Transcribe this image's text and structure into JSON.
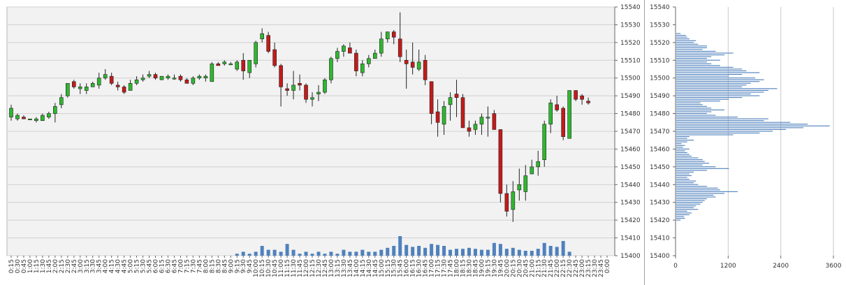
{
  "chart_data": [
    {
      "type": "candlestick",
      "ylim": [
        15400,
        15540
      ],
      "y_ticks": [
        15400,
        15410,
        15420,
        15430,
        15440,
        15450,
        15460,
        15470,
        15480,
        15490,
        15500,
        15510,
        15520,
        15530,
        15540
      ],
      "x_ticks": [
        "0:15",
        "0:30",
        "0:45",
        "1:00",
        "1:15",
        "1:30",
        "1:45",
        "2:00",
        "2:15",
        "2:30",
        "2:45",
        "3:00",
        "3:15",
        "3:30",
        "3:45",
        "4:00",
        "4:15",
        "4:30",
        "4:45",
        "5:00",
        "5:15",
        "5:30",
        "5:45",
        "6:00",
        "6:15",
        "6:30",
        "6:45",
        "7:00",
        "7:15",
        "7:30",
        "7:45",
        "8:00",
        "8:15",
        "8:30",
        "8:45",
        "9:00",
        "9:15",
        "9:30",
        "9:45",
        "10:00",
        "10:15",
        "10:30",
        "10:45",
        "11:00",
        "11:15",
        "11:30",
        "11:45",
        "12:00",
        "12:15",
        "12:30",
        "12:45",
        "13:00",
        "13:15",
        "13:30",
        "13:45",
        "14:00",
        "14:15",
        "14:30",
        "14:45",
        "15:00",
        "15:15",
        "15:30",
        "15:45",
        "16:00",
        "16:15",
        "16:30",
        "16:45",
        "17:00",
        "17:15",
        "17:30",
        "17:45",
        "18:00",
        "18:15",
        "18:30",
        "18:45",
        "19:00",
        "19:15",
        "19:30",
        "19:45",
        "20:00",
        "20:15",
        "20:30",
        "20:45",
        "21:00",
        "21:15",
        "21:30",
        "21:45",
        "22:00",
        "22:15",
        "22:30",
        "22:45",
        "23:00",
        "23:15",
        "23:30",
        "23:45",
        "0:00"
      ],
      "grid": true,
      "colors": {
        "up": "#2eb82e",
        "down": "#c41a1a",
        "volume": "#4f81bd",
        "plot_background": "#f2f2f2"
      },
      "candles": [
        {
          "x": "0:15",
          "o": 15478,
          "h": 15485,
          "l": 15476,
          "c": 15483
        },
        {
          "x": "0:30",
          "o": 15477,
          "h": 15480,
          "l": 15476,
          "c": 15479
        },
        {
          "x": "0:45",
          "o": 15478,
          "h": 15479,
          "l": 15477,
          "c": 15477
        },
        {
          "x": "1:00",
          "o": 15477,
          "h": 15477,
          "l": 15477,
          "c": 15477
        },
        {
          "x": "1:15",
          "o": 15476,
          "h": 15478,
          "l": 15475,
          "c": 15477
        },
        {
          "x": "1:30",
          "o": 15476,
          "h": 15480,
          "l": 15476,
          "c": 15479
        },
        {
          "x": "1:45",
          "o": 15478,
          "h": 15481,
          "l": 15477,
          "c": 15480
        },
        {
          "x": "2:00",
          "o": 15480,
          "h": 15486,
          "l": 15475,
          "c": 15484
        },
        {
          "x": "2:15",
          "o": 15485,
          "h": 15491,
          "l": 15483,
          "c": 15489
        },
        {
          "x": "2:30",
          "o": 15490,
          "h": 15497,
          "l": 15489,
          "c": 15497
        },
        {
          "x": "2:45",
          "o": 15498,
          "h": 15499,
          "l": 15494,
          "c": 15495
        },
        {
          "x": "3:00",
          "o": 15494,
          "h": 15497,
          "l": 15491,
          "c": 15495
        },
        {
          "x": "3:15",
          "o": 15493,
          "h": 15497,
          "l": 15491,
          "c": 15495
        },
        {
          "x": "3:30",
          "o": 15495,
          "h": 15498,
          "l": 15495,
          "c": 15497
        },
        {
          "x": "3:45",
          "o": 15496,
          "h": 15503,
          "l": 15494,
          "c": 15500
        },
        {
          "x": "4:00",
          "o": 15500,
          "h": 15505,
          "l": 15499,
          "c": 15502
        },
        {
          "x": "4:15",
          "o": 15501,
          "h": 15503,
          "l": 15496,
          "c": 15497
        },
        {
          "x": "4:30",
          "o": 15496,
          "h": 15498,
          "l": 15493,
          "c": 15495
        },
        {
          "x": "4:45",
          "o": 15495,
          "h": 15496,
          "l": 15491,
          "c": 15492
        },
        {
          "x": "5:00",
          "o": 15493,
          "h": 15499,
          "l": 15493,
          "c": 15497
        },
        {
          "x": "5:15",
          "o": 15497,
          "h": 15501,
          "l": 15496,
          "c": 15499
        },
        {
          "x": "5:30",
          "o": 15499,
          "h": 15502,
          "l": 15498,
          "c": 15500
        },
        {
          "x": "5:45",
          "o": 15501,
          "h": 15504,
          "l": 15500,
          "c": 15502
        },
        {
          "x": "6:00",
          "o": 15502,
          "h": 15503,
          "l": 15499,
          "c": 15500
        },
        {
          "x": "6:15",
          "o": 15499,
          "h": 15501,
          "l": 15499,
          "c": 15501
        },
        {
          "x": "6:30",
          "o": 15500,
          "h": 15502,
          "l": 15499,
          "c": 15501
        },
        {
          "x": "6:45",
          "o": 15500,
          "h": 15502,
          "l": 15499,
          "c": 15500
        },
        {
          "x": "7:00",
          "o": 15501,
          "h": 15502,
          "l": 15498,
          "c": 15499
        },
        {
          "x": "7:15",
          "o": 15499,
          "h": 15500,
          "l": 15497,
          "c": 15497
        },
        {
          "x": "7:30",
          "o": 15497,
          "h": 15501,
          "l": 15496,
          "c": 15500
        },
        {
          "x": "7:45",
          "o": 15500,
          "h": 15502,
          "l": 15499,
          "c": 15501
        },
        {
          "x": "8:00",
          "o": 15500,
          "h": 15502,
          "l": 15498,
          "c": 15501
        },
        {
          "x": "8:15",
          "o": 15498,
          "h": 15509,
          "l": 15498,
          "c": 15508
        },
        {
          "x": "8:30",
          "o": 15508,
          "h": 15509,
          "l": 15507,
          "c": 15507
        },
        {
          "x": "8:45",
          "o": 15508,
          "h": 15510,
          "l": 15507,
          "c": 15509
        },
        {
          "x": "9:00",
          "o": 15508,
          "h": 15509,
          "l": 15508,
          "c": 15508
        },
        {
          "x": "9:15",
          "o": 15505,
          "h": 15510,
          "l": 15504,
          "c": 15509
        },
        {
          "x": "9:30",
          "o": 15510,
          "h": 15514,
          "l": 15499,
          "c": 15504
        },
        {
          "x": "9:45",
          "o": 15503,
          "h": 15510,
          "l": 15500,
          "c": 15510
        },
        {
          "x": "10:00",
          "o": 15508,
          "h": 15521,
          "l": 15506,
          "c": 15520
        },
        {
          "x": "10:15",
          "o": 15522,
          "h": 15528,
          "l": 15520,
          "c": 15525
        },
        {
          "x": "10:30",
          "o": 15524,
          "h": 15526,
          "l": 15514,
          "c": 15515
        },
        {
          "x": "10:45",
          "o": 15516,
          "h": 15520,
          "l": 15506,
          "c": 15507
        },
        {
          "x": "11:00",
          "o": 15507,
          "h": 15508,
          "l": 15484,
          "c": 15495
        },
        {
          "x": "11:15",
          "o": 15494,
          "h": 15497,
          "l": 15490,
          "c": 15493
        },
        {
          "x": "11:30",
          "o": 15493,
          "h": 15504,
          "l": 15488,
          "c": 15496
        },
        {
          "x": "11:45",
          "o": 15497,
          "h": 15502,
          "l": 15493,
          "c": 15496
        },
        {
          "x": "12:00",
          "o": 15496,
          "h": 15497,
          "l": 15486,
          "c": 15488
        },
        {
          "x": "12:15",
          "o": 15488,
          "h": 15492,
          "l": 15484,
          "c": 15489
        },
        {
          "x": "12:30",
          "o": 15491,
          "h": 15496,
          "l": 15487,
          "c": 15492
        },
        {
          "x": "12:45",
          "o": 15492,
          "h": 15500,
          "l": 15491,
          "c": 15499
        },
        {
          "x": "13:00",
          "o": 15499,
          "h": 15512,
          "l": 15497,
          "c": 15511
        },
        {
          "x": "13:15",
          "o": 15511,
          "h": 15517,
          "l": 15509,
          "c": 15515
        },
        {
          "x": "13:30",
          "o": 15515,
          "h": 15519,
          "l": 15512,
          "c": 15518
        },
        {
          "x": "13:45",
          "o": 15517,
          "h": 15520,
          "l": 15514,
          "c": 15514
        },
        {
          "x": "14:00",
          "o": 15514,
          "h": 15516,
          "l": 15501,
          "c": 15504
        },
        {
          "x": "14:15",
          "o": 15503,
          "h": 15510,
          "l": 15501,
          "c": 15508
        },
        {
          "x": "14:30",
          "o": 15508,
          "h": 15513,
          "l": 15506,
          "c": 15511
        },
        {
          "x": "14:45",
          "o": 15511,
          "h": 15516,
          "l": 15511,
          "c": 15514
        },
        {
          "x": "15:00",
          "o": 15514,
          "h": 15526,
          "l": 15512,
          "c": 15522
        },
        {
          "x": "15:15",
          "o": 15522,
          "h": 15526,
          "l": 15520,
          "c": 15526
        },
        {
          "x": "15:30",
          "o": 15526,
          "h": 15527,
          "l": 15519,
          "c": 15523
        },
        {
          "x": "15:45",
          "o": 15522,
          "h": 15537,
          "l": 15509,
          "c": 15512
        },
        {
          "x": "16:00",
          "o": 15510,
          "h": 15516,
          "l": 15494,
          "c": 15508
        },
        {
          "x": "16:15",
          "o": 15509,
          "h": 15520,
          "l": 15502,
          "c": 15506
        },
        {
          "x": "16:30",
          "o": 15505,
          "h": 15516,
          "l": 15504,
          "c": 15509
        },
        {
          "x": "16:45",
          "o": 15510,
          "h": 15513,
          "l": 15496,
          "c": 15499
        },
        {
          "x": "17:00",
          "o": 15498,
          "h": 15498,
          "l": 15474,
          "c": 15480
        },
        {
          "x": "17:15",
          "o": 15481,
          "h": 15488,
          "l": 15467,
          "c": 15475
        },
        {
          "x": "17:30",
          "o": 15474,
          "h": 15487,
          "l": 15468,
          "c": 15484
        },
        {
          "x": "17:45",
          "o": 15485,
          "h": 15492,
          "l": 15476,
          "c": 15489
        },
        {
          "x": "18:00",
          "o": 15491,
          "h": 15499,
          "l": 15478,
          "c": 15489
        },
        {
          "x": "18:15",
          "o": 15489,
          "h": 15491,
          "l": 15472,
          "c": 15472
        },
        {
          "x": "18:30",
          "o": 15472,
          "h": 15476,
          "l": 15467,
          "c": 15470
        },
        {
          "x": "18:45",
          "o": 15471,
          "h": 15476,
          "l": 15468,
          "c": 15474
        },
        {
          "x": "19:00",
          "o": 15474,
          "h": 15480,
          "l": 15468,
          "c": 15478
        },
        {
          "x": "19:15",
          "o": 15478,
          "h": 15484,
          "l": 15467,
          "c": 15478
        },
        {
          "x": "19:30",
          "o": 15480,
          "h": 15482,
          "l": 15472,
          "c": 15471
        },
        {
          "x": "19:45",
          "o": 15471,
          "h": 15471,
          "l": 15430,
          "c": 15435
        },
        {
          "x": "20:00",
          "o": 15435,
          "h": 15440,
          "l": 15422,
          "c": 15425
        },
        {
          "x": "20:15",
          "o": 15426,
          "h": 15442,
          "l": 15419,
          "c": 15436
        },
        {
          "x": "20:30",
          "o": 15437,
          "h": 15449,
          "l": 15431,
          "c": 15440
        },
        {
          "x": "20:45",
          "o": 15436,
          "h": 15451,
          "l": 15431,
          "c": 15445
        },
        {
          "x": "21:00",
          "o": 15446,
          "h": 15454,
          "l": 15446,
          "c": 15450
        },
        {
          "x": "21:15",
          "o": 15450,
          "h": 15459,
          "l": 15445,
          "c": 15453
        },
        {
          "x": "21:30",
          "o": 15454,
          "h": 15476,
          "l": 15450,
          "c": 15474
        },
        {
          "x": "21:45",
          "o": 15474,
          "h": 15488,
          "l": 15469,
          "c": 15486
        },
        {
          "x": "22:00",
          "o": 15485,
          "h": 15490,
          "l": 15481,
          "c": 15482
        },
        {
          "x": "22:15",
          "o": 15483,
          "h": 15484,
          "l": 15465,
          "c": 15467
        },
        {
          "x": "22:30",
          "o": 15466,
          "h": 15493,
          "l": 15466,
          "c": 15493
        },
        {
          "x": "22:45",
          "o": 15493,
          "h": 15493,
          "l": 15487,
          "c": 15488
        },
        {
          "x": "23:00",
          "o": 15490,
          "h": 15491,
          "l": 15485,
          "c": 15488
        },
        {
          "x": "23:15",
          "o": 15487,
          "h": 15489,
          "l": 15485,
          "c": 15486
        }
      ],
      "volume_bars": [
        {
          "x": "9:15",
          "v": 0.1
        },
        {
          "x": "9:30",
          "v": 0.2
        },
        {
          "x": "9:45",
          "v": 0.1
        },
        {
          "x": "10:00",
          "v": 0.2
        },
        {
          "x": "10:15",
          "v": 0.5
        },
        {
          "x": "10:30",
          "v": 0.3
        },
        {
          "x": "10:45",
          "v": 0.3
        },
        {
          "x": "11:00",
          "v": 0.2
        },
        {
          "x": "11:15",
          "v": 0.6
        },
        {
          "x": "11:30",
          "v": 0.3
        },
        {
          "x": "11:45",
          "v": 0.1
        },
        {
          "x": "12:00",
          "v": 0.2
        },
        {
          "x": "12:15",
          "v": 0.1
        },
        {
          "x": "12:30",
          "v": 0.2
        },
        {
          "x": "12:45",
          "v": 0.1
        },
        {
          "x": "13:00",
          "v": 0.2
        },
        {
          "x": "13:15",
          "v": 0.1
        },
        {
          "x": "13:30",
          "v": 0.3
        },
        {
          "x": "13:45",
          "v": 0.2
        },
        {
          "x": "14:00",
          "v": 0.2
        },
        {
          "x": "14:15",
          "v": 0.3
        },
        {
          "x": "14:30",
          "v": 0.2
        },
        {
          "x": "14:45",
          "v": 0.2
        },
        {
          "x": "15:00",
          "v": 0.3
        },
        {
          "x": "15:15",
          "v": 0.4
        },
        {
          "x": "15:30",
          "v": 0.5
        },
        {
          "x": "15:45",
          "v": 1.0
        },
        {
          "x": "16:00",
          "v": 0.55
        },
        {
          "x": "16:15",
          "v": 0.45
        },
        {
          "x": "16:30",
          "v": 0.5
        },
        {
          "x": "16:45",
          "v": 0.4
        },
        {
          "x": "17:00",
          "v": 0.6
        },
        {
          "x": "17:15",
          "v": 0.55
        },
        {
          "x": "17:30",
          "v": 0.5
        },
        {
          "x": "17:45",
          "v": 0.3
        },
        {
          "x": "18:00",
          "v": 0.35
        },
        {
          "x": "18:15",
          "v": 0.35
        },
        {
          "x": "18:30",
          "v": 0.4
        },
        {
          "x": "18:45",
          "v": 0.35
        },
        {
          "x": "19:00",
          "v": 0.3
        },
        {
          "x": "19:15",
          "v": 0.3
        },
        {
          "x": "19:30",
          "v": 0.65
        },
        {
          "x": "19:45",
          "v": 0.6
        },
        {
          "x": "20:00",
          "v": 0.35
        },
        {
          "x": "20:15",
          "v": 0.4
        },
        {
          "x": "20:30",
          "v": 0.3
        },
        {
          "x": "20:45",
          "v": 0.25
        },
        {
          "x": "21:00",
          "v": 0.25
        },
        {
          "x": "21:15",
          "v": 0.35
        },
        {
          "x": "21:30",
          "v": 0.65
        },
        {
          "x": "21:45",
          "v": 0.5
        },
        {
          "x": "22:00",
          "v": 0.45
        },
        {
          "x": "22:15",
          "v": 0.75
        },
        {
          "x": "22:30",
          "v": 0.2
        }
      ]
    },
    {
      "type": "bar",
      "orientation": "horizontal",
      "xlim": [
        0,
        3600
      ],
      "x_ticks": [
        0,
        1200,
        2400,
        3600
      ],
      "ylim": [
        15400,
        15540
      ],
      "y_ticks": [
        15400,
        15410,
        15420,
        15430,
        15440,
        15450,
        15460,
        15470,
        15480,
        15490,
        15500,
        15510,
        15520,
        15530,
        15540
      ],
      "color": "#4f81bd",
      "bar_step": 1,
      "bars_from_price": 15420,
      "values": [
        100,
        200,
        180,
        300,
        350,
        250,
        500,
        400,
        450,
        550,
        600,
        650,
        700,
        900,
        850,
        1100,
        1400,
        1000,
        950,
        700,
        500,
        400,
        450,
        300,
        250,
        350,
        300,
        400,
        700,
        1200,
        900,
        600,
        750,
        650,
        600,
        500,
        350,
        300,
        250,
        200,
        300,
        150,
        200,
        120,
        250,
        400,
        250,
        300,
        1300,
        1900,
        2200,
        2500,
        2900,
        3500,
        3000,
        2600,
        2000,
        2100,
        1400,
        900,
        700,
        800,
        1100,
        800,
        700,
        600,
        550,
        1000,
        1200,
        1500,
        1900,
        1700,
        2000,
        2100,
        2300,
        1500,
        1600,
        1700,
        1900,
        2000,
        1800,
        1200,
        1500,
        1900,
        1600,
        1500,
        1300,
        1000,
        800,
        700,
        1000,
        700,
        800,
        1100,
        1300,
        900,
        600,
        700,
        700,
        500,
        400,
        450,
        300,
        250,
        220,
        100
      ]
    }
  ]
}
